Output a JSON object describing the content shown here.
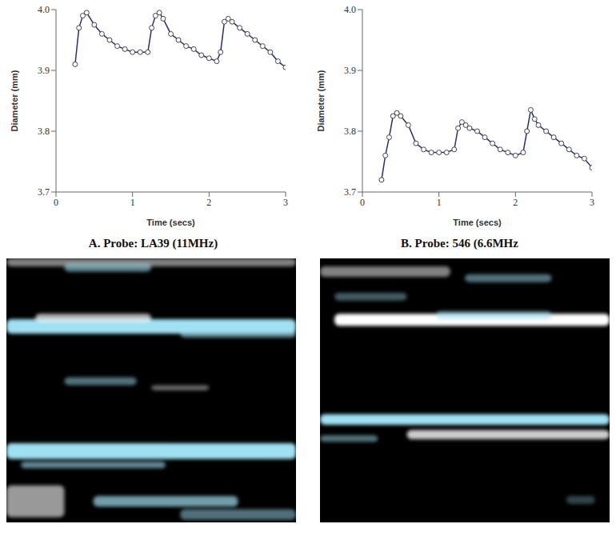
{
  "chart_data": [
    {
      "type": "line",
      "title": "A. Probe: LA39 (11MHz)",
      "x_label": "Time (secs)",
      "y_label": "Diameter (mm)",
      "x": [
        0.25,
        0.3,
        0.35,
        0.4,
        0.5,
        0.6,
        0.7,
        0.8,
        0.9,
        1.0,
        1.1,
        1.2,
        1.25,
        1.3,
        1.35,
        1.4,
        1.5,
        1.6,
        1.7,
        1.8,
        1.9,
        2.0,
        2.1,
        2.15,
        2.2,
        2.25,
        2.3,
        2.4,
        2.5,
        2.6,
        2.7,
        2.8,
        2.9,
        3.0
      ],
      "values": [
        3.91,
        3.97,
        3.99,
        3.995,
        3.975,
        3.96,
        3.95,
        3.94,
        3.935,
        3.93,
        3.93,
        3.93,
        3.97,
        3.99,
        3.995,
        3.985,
        3.96,
        3.95,
        3.94,
        3.935,
        3.925,
        3.92,
        3.915,
        3.93,
        3.98,
        3.985,
        3.98,
        3.97,
        3.96,
        3.95,
        3.94,
        3.93,
        3.915,
        3.905
      ],
      "color": "#2b2d7a",
      "marker": "circle",
      "xlim": [
        0,
        3
      ],
      "xticks": [
        0,
        1,
        2,
        3
      ],
      "ylim": [
        3.7,
        4
      ],
      "yticks": [
        3.7,
        3.8,
        3.9,
        {
          "value": 4,
          "label": "4.0"
        }
      ]
    },
    {
      "type": "line",
      "title": "B. Probe: 546 (6.6MHz",
      "x_label": "Time (secs)",
      "y_label": "Diameter (mm)",
      "x": [
        0.25,
        0.3,
        0.35,
        0.4,
        0.45,
        0.5,
        0.6,
        0.7,
        0.8,
        0.9,
        1.0,
        1.1,
        1.2,
        1.25,
        1.3,
        1.35,
        1.4,
        1.5,
        1.6,
        1.7,
        1.8,
        1.9,
        2.0,
        2.1,
        2.15,
        2.2,
        2.25,
        2.3,
        2.4,
        2.5,
        2.6,
        2.7,
        2.8,
        2.9,
        3.0
      ],
      "values": [
        3.72,
        3.76,
        3.79,
        3.825,
        3.83,
        3.825,
        3.81,
        3.78,
        3.77,
        3.765,
        3.765,
        3.765,
        3.77,
        3.805,
        3.815,
        3.81,
        3.805,
        3.8,
        3.79,
        3.78,
        3.77,
        3.765,
        3.76,
        3.765,
        3.8,
        3.835,
        3.82,
        3.81,
        3.8,
        3.79,
        3.78,
        3.77,
        3.76,
        3.755,
        3.74
      ],
      "color": "#2b2d7a",
      "marker": "circle",
      "xlim": [
        0,
        3
      ],
      "xticks": [
        0,
        1,
        2,
        3
      ],
      "ylim": [
        3.7,
        4
      ],
      "yticks": [
        3.7,
        3.8,
        3.9,
        {
          "value": 4,
          "label": "4.0"
        }
      ]
    }
  ]
}
